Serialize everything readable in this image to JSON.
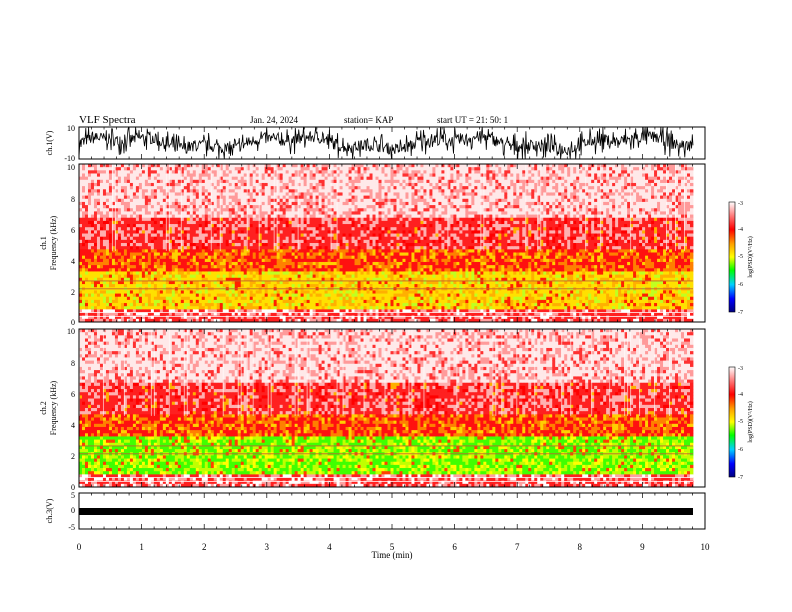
{
  "header": {
    "title": "VLF Spectra",
    "date": "Jan. 24, 2024",
    "station": "station= KAP",
    "start": "start  UT =   21: 50: 1"
  },
  "chart_data": [
    {
      "type": "line",
      "panel": "ch1-waveform",
      "ylabel": "ch.1(V)",
      "ylim": [
        -10,
        10
      ],
      "yticks": [
        "10",
        "-10"
      ],
      "xlim": [
        0,
        10
      ],
      "series": [
        {
          "values": [
            -2,
            3,
            -4,
            1,
            -6,
            2,
            -3,
            5,
            -2,
            0
          ]
        }
      ]
    },
    {
      "type": "heatmap",
      "panel": "ch1-spectrogram",
      "ylabel": "ch.1\nFrequency  (kHz)",
      "ylim": [
        0,
        10
      ],
      "yticks": [
        "0",
        "2",
        "4",
        "6",
        "8",
        "10"
      ],
      "xlim": [
        0,
        9.8
      ],
      "colorbar": {
        "label": "log(PSD)(V²/Hz)",
        "ticks": [
          "-3",
          "-4",
          "-5",
          "-6",
          "-7"
        ],
        "range": [
          -7,
          -3
        ]
      }
    },
    {
      "type": "heatmap",
      "panel": "ch2-spectrogram",
      "ylabel": "ch.2\nFrequency  (kHz)",
      "ylim": [
        0,
        10
      ],
      "yticks": [
        "0",
        "2",
        "4",
        "6",
        "8",
        "10"
      ],
      "xlim": [
        0,
        9.8
      ],
      "colorbar": {
        "label": "log(PSD)(V²/Hz)",
        "ticks": [
          "-3",
          "-4",
          "-5",
          "-6",
          "-7"
        ],
        "range": [
          -7,
          -3
        ]
      }
    },
    {
      "type": "line",
      "panel": "ch3-waveform",
      "ylabel": "ch.3(V)",
      "ylim": [
        -5,
        5
      ],
      "yticks": [
        "5",
        "0",
        "-5"
      ],
      "xlim": [
        0,
        10
      ],
      "series": [
        {
          "values": [
            -0.5,
            -0.5,
            -0.5,
            -0.5,
            -0.5,
            -0.5,
            -0.5,
            -0.5,
            -0.5,
            -0.5
          ]
        }
      ]
    }
  ],
  "xaxis": {
    "label": "Time  (min)",
    "range": [
      0,
      10
    ],
    "ticks": [
      "0",
      "1",
      "2",
      "3",
      "4",
      "5",
      "6",
      "7",
      "8",
      "9",
      "10"
    ]
  },
  "colors": {
    "high": "#ff0000",
    "mid": "#ffff00",
    "low": "#00ff00",
    "lowest": "#0000ff"
  }
}
